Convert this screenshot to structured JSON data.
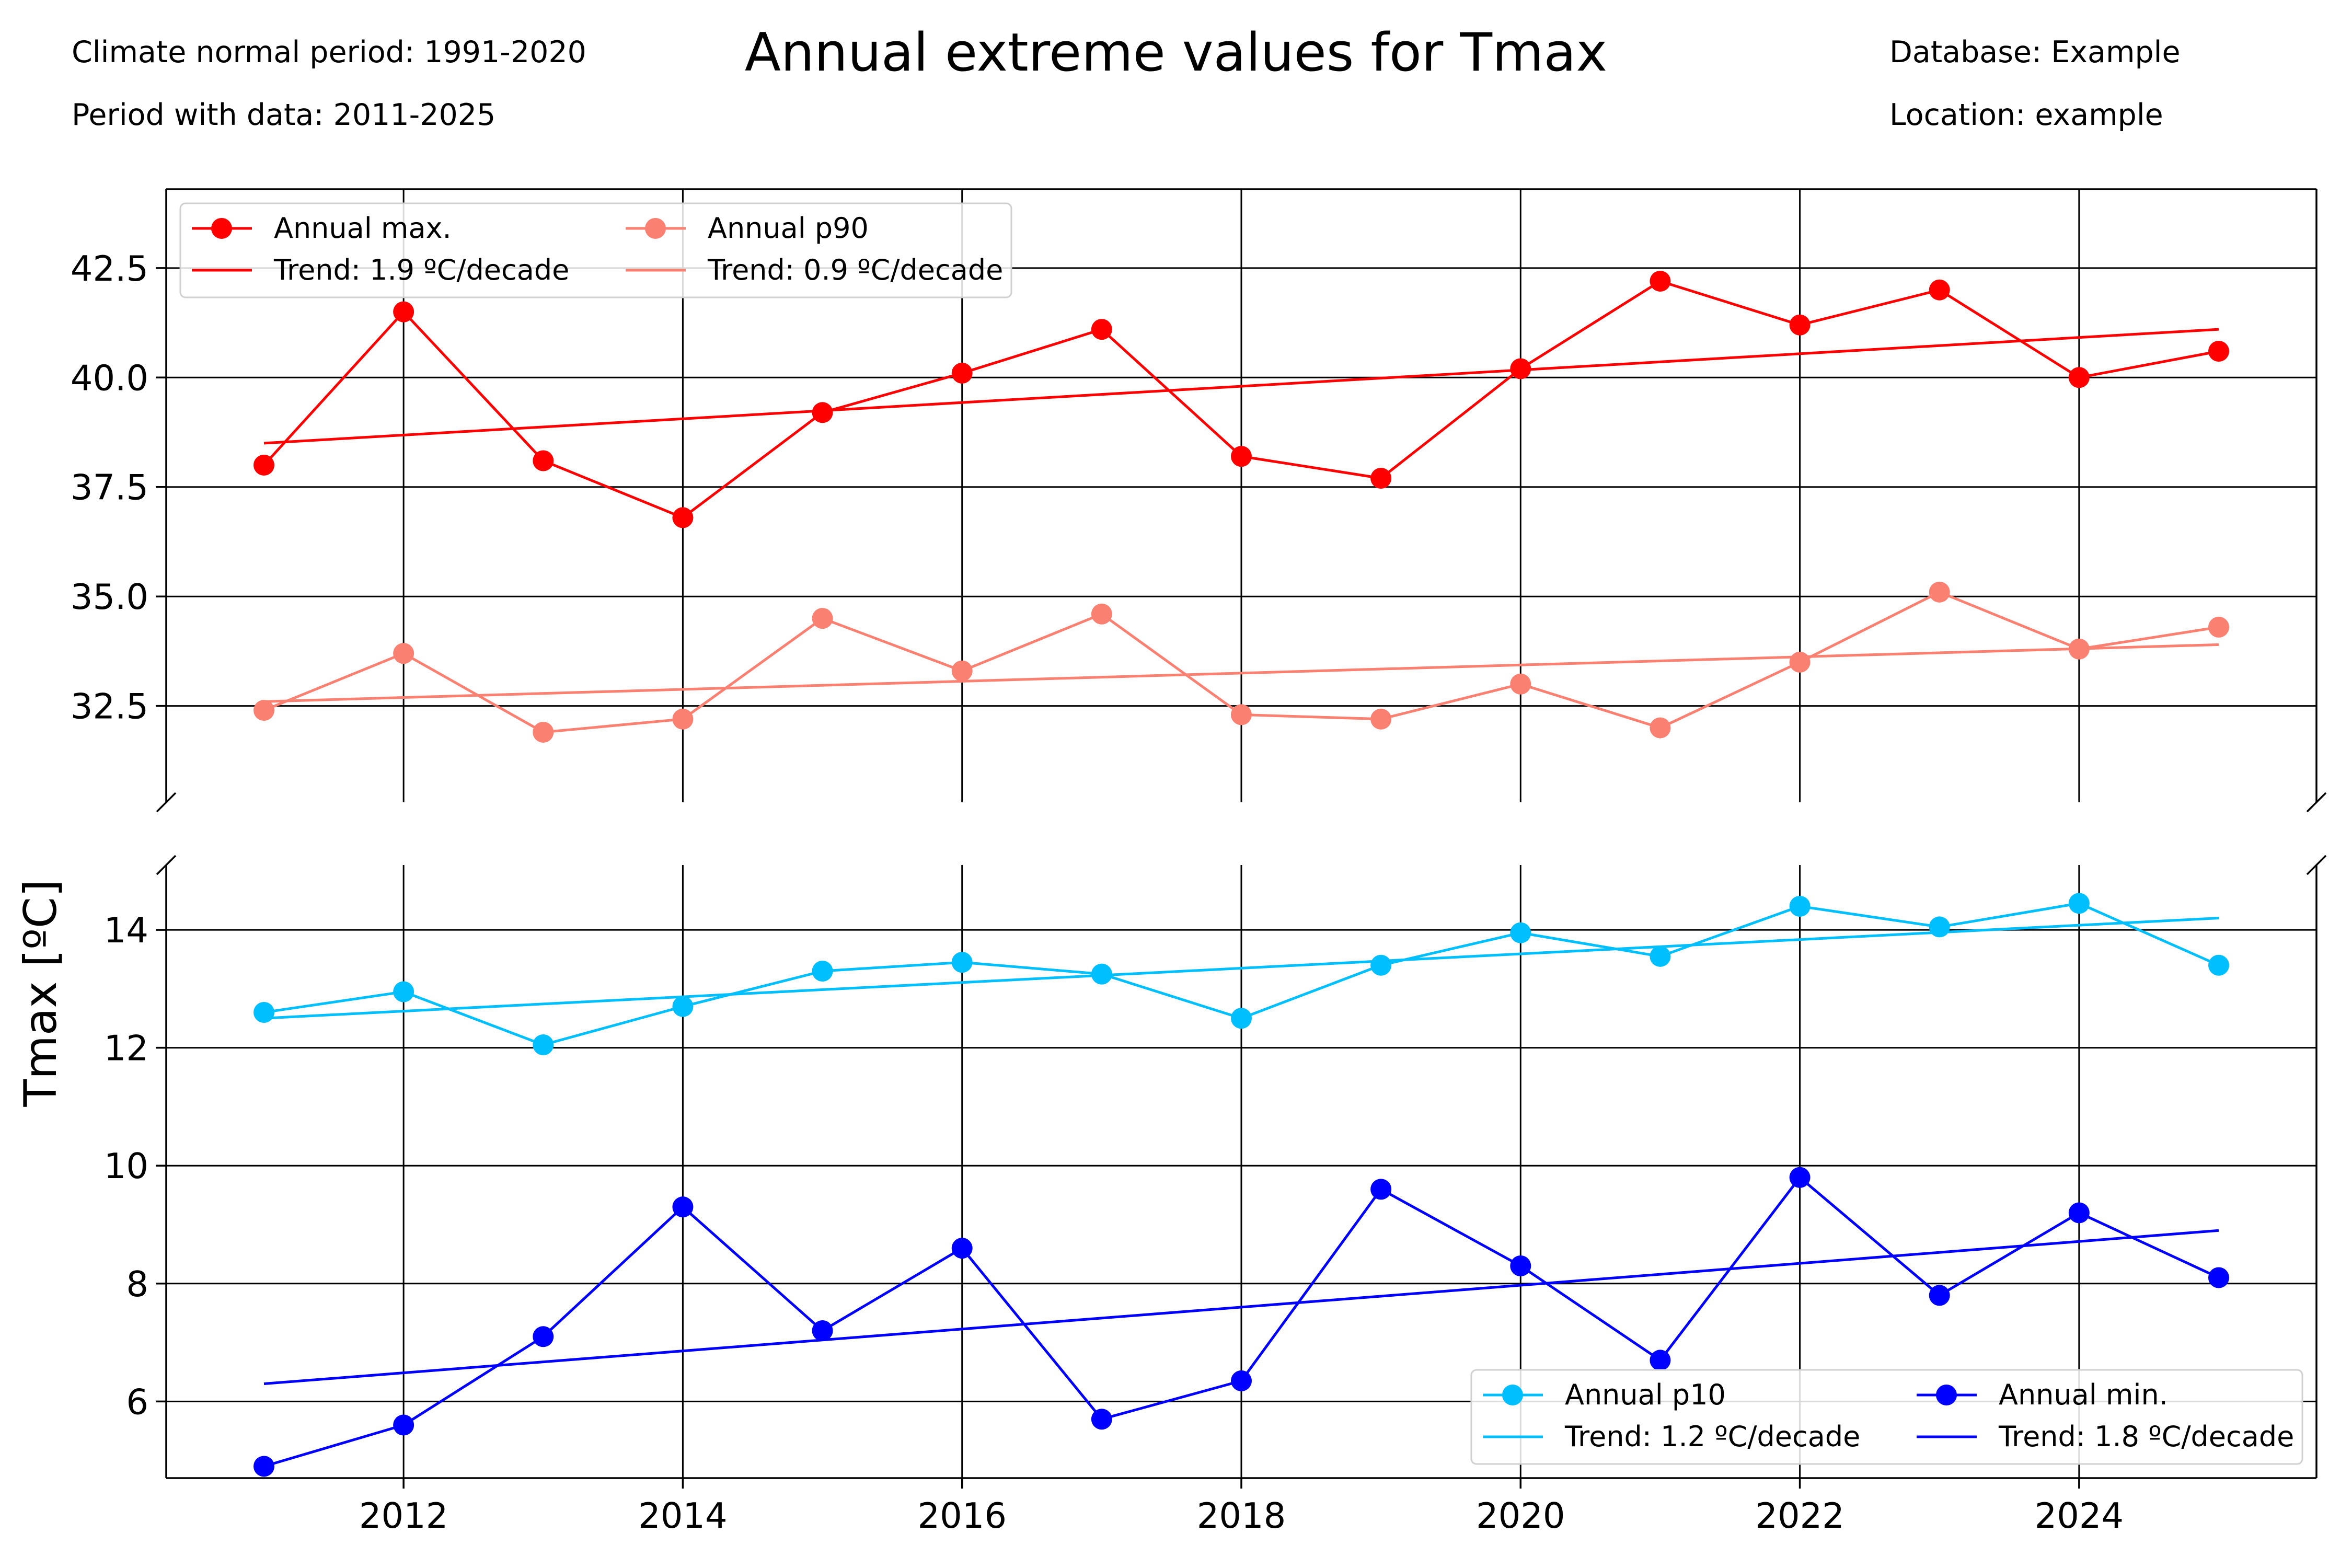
{
  "header": {
    "title": "Annual extreme values for Tmax",
    "normal_period": "Climate normal period: 1991-2020",
    "data_period": "Period with data: 2011-2025",
    "database": "Database: Example",
    "location": "Location: example"
  },
  "chart_data": {
    "type": "line",
    "title": "Annual extreme values for Tmax",
    "ylabel": "Tmax [ºC]",
    "xlabel": "",
    "broken_y_axis": true,
    "grid": true,
    "x": [
      2011,
      2012,
      2013,
      2014,
      2015,
      2016,
      2017,
      2018,
      2019,
      2020,
      2021,
      2022,
      2023,
      2024,
      2025
    ],
    "x_ticks": [
      "2012",
      "2014",
      "2016",
      "2018",
      "2020",
      "2022",
      "2024"
    ],
    "xlim": [
      2010.3,
      2025.7
    ],
    "panels": [
      {
        "ylim": [
          30.3,
          44.3
        ],
        "y_ticks": [
          "32.5",
          "35.0",
          "37.5",
          "40.0",
          "42.5"
        ],
        "legend_position": "top-left",
        "series": [
          {
            "name": "Annual max.",
            "color": "#ff0000",
            "kind": "markers",
            "values": [
              38.0,
              41.5,
              38.1,
              36.8,
              39.2,
              40.1,
              41.1,
              38.2,
              37.7,
              40.2,
              42.2,
              41.2,
              42.0,
              40.0,
              40.6
            ]
          },
          {
            "name": "Trend: 1.9 ºC/decade",
            "color": "#ff0000",
            "kind": "trend",
            "values": [
              38.5,
              41.1
            ]
          },
          {
            "name": "Annual p90",
            "color": "#fa8072",
            "kind": "markers",
            "values": [
              32.4,
              33.7,
              31.9,
              32.2,
              34.5,
              33.3,
              34.6,
              32.3,
              32.2,
              33.0,
              32.0,
              33.5,
              35.1,
              33.8,
              34.3
            ]
          },
          {
            "name": "Trend: 0.9 ºC/decade",
            "color": "#fa8072",
            "kind": "trend",
            "values": [
              32.6,
              33.9
            ]
          }
        ]
      },
      {
        "ylim": [
          4.7,
          15.1
        ],
        "y_ticks": [
          "6",
          "8",
          "10",
          "12",
          "14"
        ],
        "legend_position": "bottom-right",
        "series": [
          {
            "name": "Annual p10",
            "color": "#00bfff",
            "kind": "markers",
            "values": [
              12.6,
              12.95,
              12.05,
              12.7,
              13.3,
              13.45,
              13.25,
              12.5,
              13.4,
              13.95,
              13.55,
              14.4,
              14.05,
              14.45,
              13.4
            ]
          },
          {
            "name": "Trend: 1.2 ºC/decade",
            "color": "#00bfff",
            "kind": "trend",
            "values": [
              12.5,
              14.2
            ]
          },
          {
            "name": "Annual min.",
            "color": "#0000ff",
            "kind": "markers",
            "values": [
              4.9,
              5.6,
              7.1,
              9.3,
              7.2,
              8.6,
              5.7,
              6.35,
              9.6,
              8.3,
              6.7,
              9.8,
              7.8,
              9.2,
              8.1
            ]
          },
          {
            "name": "Trend: 1.8 ºC/decade",
            "color": "#0000ff",
            "kind": "trend",
            "values": [
              6.3,
              8.9
            ]
          }
        ]
      }
    ]
  }
}
